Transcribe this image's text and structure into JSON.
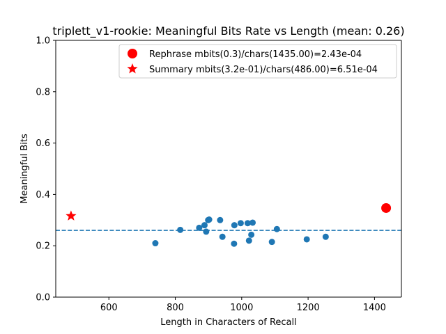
{
  "chart_data": {
    "type": "scatter",
    "title": "triplett_v1-rookie: Meaningful Bits Rate vs Length (mean: 0.26)",
    "xlabel": "Length in Characters of Recall",
    "ylabel": "Meaningful Bits",
    "xlim": [
      440,
      1481
    ],
    "ylim": [
      0.0,
      1.0
    ],
    "x_ticks": [
      600,
      800,
      1000,
      1200,
      1400
    ],
    "y_ticks": [
      0.0,
      0.2,
      0.4,
      0.6,
      0.8,
      1.0
    ],
    "x_tick_labels": [
      "600",
      "800",
      "1000",
      "1200",
      "1400"
    ],
    "y_tick_labels": [
      "0.0",
      "0.2",
      "0.4",
      "0.6",
      "0.8",
      "1.0"
    ],
    "mean_line": {
      "y": 0.26,
      "color": "#1f77b4",
      "style": "dashed"
    },
    "series": [
      {
        "color": "#1f77b4",
        "marker": "circle",
        "x": [
          740,
          815,
          872,
          888,
          893,
          899,
          902,
          935,
          942,
          977,
          978,
          997,
          1018,
          1022,
          1029,
          1033,
          1091,
          1106,
          1196,
          1253
        ],
        "y": [
          0.21,
          0.262,
          0.27,
          0.28,
          0.255,
          0.3,
          0.302,
          0.3,
          0.235,
          0.208,
          0.28,
          0.288,
          0.288,
          0.22,
          0.243,
          0.29,
          0.215,
          0.265,
          0.225,
          0.235
        ]
      },
      {
        "name": "Rephrase mbits(0.3)/chars(1435.00)=2.43e-04",
        "color": "#ff0000",
        "marker": "big-circle",
        "x": [
          1435
        ],
        "y": [
          0.347
        ]
      },
      {
        "name": "Summary mbits(3.2e-01)/chars(486.00)=6.51e-04",
        "color": "#ff0000",
        "marker": "star",
        "x": [
          486
        ],
        "y": [
          0.316
        ]
      }
    ],
    "legend": {
      "placement": "top-right",
      "entries": [
        {
          "label": "Rephrase mbits(0.3)/chars(1435.00)=2.43e-04",
          "marker": "big-circle",
          "color": "#ff0000"
        },
        {
          "label": "Summary mbits(3.2e-01)/chars(486.00)=6.51e-04",
          "marker": "star",
          "color": "#ff0000"
        }
      ]
    },
    "grid": false
  }
}
